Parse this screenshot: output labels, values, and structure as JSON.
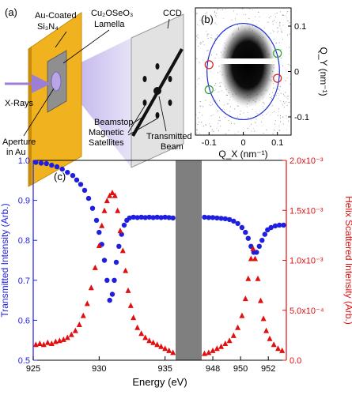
{
  "panel_a": {
    "label": "(a)",
    "texts": {
      "au_coated": "Au-Coated",
      "si3n4": "Si₃N₄",
      "cu2oseo3": "Cu₂OSeO₃",
      "lamella": "Lamella",
      "ccd": "CCD",
      "xrays": "X-Rays",
      "beamstop": "Beamstop",
      "magnetic": "Magnetic",
      "satellites": "Satellites",
      "aperture": "Aperture",
      "in_au": "in Au",
      "transmitted": "Transmitted",
      "beam": "Beam"
    },
    "colors": {
      "gold": "#f0b21f",
      "arrow": "#9b7fd4",
      "beam": "#c9bfee",
      "ccd": "#e2e2e2"
    }
  },
  "panel_b": {
    "label": "(b)",
    "chart_data": {
      "type": "image",
      "xlabel": "Q_X (nm⁻¹)",
      "ylabel": "Q_Y (nm⁻¹)",
      "xlim": [
        -0.14,
        0.14
      ],
      "ylim": [
        -0.14,
        0.14
      ],
      "xticks": [
        -0.1,
        0,
        0.1
      ],
      "yticks": [
        0.1,
        0,
        -0.1
      ],
      "xtick_labels": [
        "-0.1",
        "0",
        "0.1"
      ],
      "ytick_labels": [
        "0.1",
        "0",
        "-0.1"
      ],
      "circle_radius": 0.106,
      "red_markers": [
        [
          -0.1,
          0.015
        ],
        [
          0.1,
          -0.015
        ]
      ],
      "green_markers": [
        [
          -0.1,
          -0.04
        ],
        [
          0.1,
          0.04
        ]
      ],
      "colors": {
        "circle": "#1f2fd6",
        "red": "#d62020",
        "green": "#2ea02e"
      }
    }
  },
  "panel_c": {
    "label": "(c)",
    "chart_data": {
      "type": "scatter",
      "xlabel": "Energy (eV)",
      "ylabel_left": "Transmitted Intensity (Arb.)",
      "ylabel_right": "Helix Scattered Intensity (Arb.)",
      "ylim_left": [
        0.5,
        1.0
      ],
      "ylim_right": [
        0,
        0.002
      ],
      "yticks_left": [
        0.5,
        0.6,
        0.7,
        0.8,
        0.9,
        1.0
      ],
      "ytick_labels_left": [
        "0.5",
        "0.6",
        "0.7",
        "0.8",
        "0.9",
        "1.0"
      ],
      "yticks_right": [
        0,
        0.0005,
        0.001,
        0.0015,
        0.002
      ],
      "ytick_labels_right": [
        "0.0",
        "5.0x10⁻⁴",
        "1.0x10⁻³",
        "1.5x10⁻³",
        "2.0x10⁻³"
      ],
      "segments": [
        {
          "xlim": [
            925,
            935.8
          ],
          "xticks": [
            925,
            930,
            935
          ],
          "xtick_labels": [
            "925",
            "930",
            "935"
          ]
        },
        {
          "xlim": [
            947.2,
            953.3
          ],
          "xticks": [
            948,
            950,
            952
          ],
          "xtick_labels": [
            "948",
            "950",
            "952"
          ]
        }
      ],
      "break_color": "#7f7f7f",
      "series": [
        {
          "name": "Transmitted",
          "axis": "left",
          "marker": "circle",
          "color": "#1f1fe0",
          "points": [
            [
              925.2,
              0.995
            ],
            [
              925.6,
              0.993
            ],
            [
              926.0,
              0.992
            ],
            [
              926.4,
              0.988
            ],
            [
              926.8,
              0.984
            ],
            [
              927.2,
              0.978
            ],
            [
              927.6,
              0.97
            ],
            [
              928.0,
              0.962
            ],
            [
              928.3,
              0.951
            ],
            [
              928.6,
              0.94
            ],
            [
              928.9,
              0.925
            ],
            [
              929.2,
              0.905
            ],
            [
              929.5,
              0.88
            ],
            [
              929.8,
              0.85
            ],
            [
              930.0,
              0.82
            ],
            [
              930.2,
              0.79
            ],
            [
              930.4,
              0.75
            ],
            [
              930.6,
              0.7
            ],
            [
              930.8,
              0.65
            ],
            [
              931.0,
              0.665
            ],
            [
              931.15,
              0.7
            ],
            [
              931.3,
              0.745
            ],
            [
              931.5,
              0.785
            ],
            [
              931.7,
              0.815
            ],
            [
              931.9,
              0.838
            ],
            [
              932.1,
              0.85
            ],
            [
              932.3,
              0.856
            ],
            [
              932.6,
              0.858
            ],
            [
              932.9,
              0.857
            ],
            [
              933.2,
              0.858
            ],
            [
              933.5,
              0.857
            ],
            [
              933.8,
              0.858
            ],
            [
              934.1,
              0.857
            ],
            [
              934.4,
              0.858
            ],
            [
              934.7,
              0.857
            ],
            [
              935.0,
              0.858
            ],
            [
              935.3,
              0.857
            ],
            [
              935.6,
              0.856
            ],
            [
              947.4,
              0.858
            ],
            [
              947.7,
              0.857
            ],
            [
              948.0,
              0.857
            ],
            [
              948.3,
              0.856
            ],
            [
              948.6,
              0.855
            ],
            [
              948.9,
              0.854
            ],
            [
              949.2,
              0.852
            ],
            [
              949.5,
              0.848
            ],
            [
              949.8,
              0.842
            ],
            [
              950.1,
              0.832
            ],
            [
              950.35,
              0.82
            ],
            [
              950.55,
              0.805
            ],
            [
              950.75,
              0.785
            ],
            [
              950.95,
              0.77
            ],
            [
              951.15,
              0.77
            ],
            [
              951.35,
              0.785
            ],
            [
              951.55,
              0.8
            ],
            [
              951.75,
              0.815
            ],
            [
              951.95,
              0.826
            ],
            [
              952.2,
              0.832
            ],
            [
              952.5,
              0.836
            ],
            [
              952.8,
              0.838
            ],
            [
              953.1,
              0.838
            ]
          ]
        },
        {
          "name": "Helix Scattered",
          "axis": "right",
          "marker": "triangle",
          "color": "#e01010",
          "points": [
            [
              925.2,
              0.00016
            ],
            [
              925.5,
              0.00017
            ],
            [
              925.8,
              0.00016
            ],
            [
              926.1,
              0.00018
            ],
            [
              926.4,
              0.00017
            ],
            [
              926.7,
              0.00019
            ],
            [
              927.0,
              0.0002
            ],
            [
              927.3,
              0.00021
            ],
            [
              927.6,
              0.00023
            ],
            [
              927.9,
              0.00026
            ],
            [
              928.2,
              0.0003
            ],
            [
              928.5,
              0.00036
            ],
            [
              928.8,
              0.00045
            ],
            [
              929.1,
              0.00057
            ],
            [
              929.4,
              0.00073
            ],
            [
              929.7,
              0.00093
            ],
            [
              930.0,
              0.00115
            ],
            [
              930.2,
              0.00135
            ],
            [
              930.4,
              0.0015
            ],
            [
              930.6,
              0.0016
            ],
            [
              930.8,
              0.00165
            ],
            [
              931.0,
              0.00168
            ],
            [
              931.2,
              0.00165
            ],
            [
              931.4,
              0.0015
            ],
            [
              931.6,
              0.0013
            ],
            [
              931.8,
              0.0011
            ],
            [
              932.0,
              0.0009
            ],
            [
              932.2,
              0.0007
            ],
            [
              932.4,
              0.00055
            ],
            [
              932.6,
              0.00043
            ],
            [
              932.9,
              0.00033
            ],
            [
              933.2,
              0.00027
            ],
            [
              933.5,
              0.00023
            ],
            [
              933.8,
              0.0002
            ],
            [
              934.1,
              0.00018
            ],
            [
              934.4,
              0.00016
            ],
            [
              934.7,
              0.00014
            ],
            [
              935.0,
              0.00012
            ],
            [
              935.3,
              0.0001
            ],
            [
              935.6,
              8e-05
            ],
            [
              947.4,
              7e-05
            ],
            [
              947.7,
              8e-05
            ],
            [
              948.0,
              0.0001
            ],
            [
              948.3,
              0.00012
            ],
            [
              948.6,
              0.00014
            ],
            [
              948.9,
              0.00017
            ],
            [
              949.2,
              0.0002
            ],
            [
              949.5,
              0.00025
            ],
            [
              949.8,
              0.00033
            ],
            [
              950.1,
              0.00045
            ],
            [
              950.35,
              0.00062
            ],
            [
              950.55,
              0.00082
            ],
            [
              950.75,
              0.00102
            ],
            [
              950.9,
              0.00112
            ],
            [
              951.05,
              0.00102
            ],
            [
              951.25,
              0.00082
            ],
            [
              951.45,
              0.0006
            ],
            [
              951.65,
              0.00042
            ],
            [
              951.85,
              0.0003
            ],
            [
              952.1,
              0.00022
            ],
            [
              952.4,
              0.00016
            ],
            [
              952.7,
              0.00012
            ],
            [
              953.0,
              0.0001
            ]
          ]
        }
      ]
    }
  }
}
